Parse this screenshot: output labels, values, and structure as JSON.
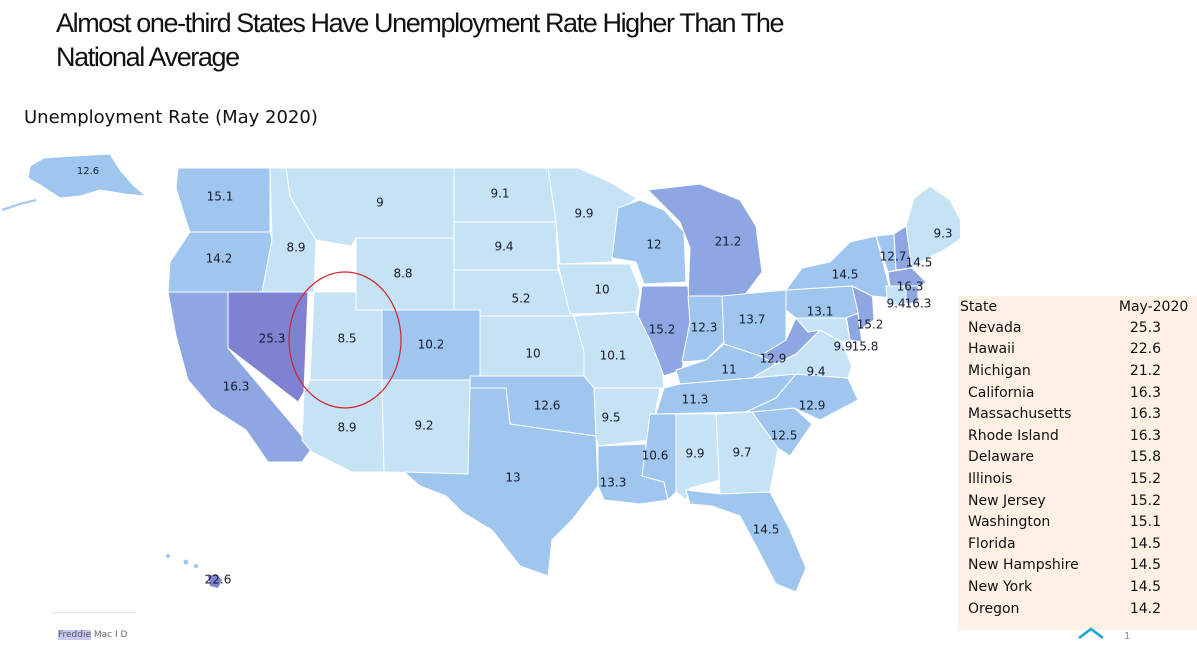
{
  "title": "Almost one-third States Have Unemployment Rate Higher Than The National Average",
  "subtitle": "Unemployment Rate (May 2020)",
  "legend_colors": {
    "low": "#c6e2f5",
    "mid": "#9ec6ee",
    "high": "#8ea6e2",
    "highest": "#7f82d0",
    "highlight_circle": "#d6202a",
    "table_background": "#fdf1e6"
  },
  "map_labels": {
    "AK": "12.6",
    "WA": "15.1",
    "OR": "14.2",
    "CA": "16.3",
    "NV": "25.3",
    "ID": "8.9",
    "MT": "9",
    "WY": "8.8",
    "UT": "8.5",
    "AZ": "8.9",
    "CO": "10.2",
    "NM": "9.2",
    "ND": "9.1",
    "SD": "9.4",
    "NE": "5.2",
    "KS": "10",
    "OK": "12.6",
    "TX": "13",
    "MN": "9.9",
    "IA": "10",
    "MO": "10.1",
    "AR": "9.5",
    "LA": "13.3",
    "WI": "12",
    "MI": "21.2",
    "IL": "15.2",
    "IN": "12.3",
    "OH": "13.7",
    "KY": "11",
    "TN": "11.3",
    "MS": "10.6",
    "AL": "9.9",
    "GA": "9.7",
    "FL": "14.5",
    "SC": "12.5",
    "NC": "12.9",
    "VA": "9.4",
    "WV": "12.9",
    "PA": "13.1",
    "NY": "14.5",
    "NJ": "15.2",
    "DE": "15.8",
    "MD": "9.9",
    "ME": "9.3",
    "NH": "14.5",
    "VT": "12.7",
    "MA": "16.3",
    "CT": "9.4",
    "RI": "16.3",
    "HI": "22.6"
  },
  "table": {
    "headers": [
      "State",
      "May-2020"
    ],
    "rows": [
      {
        "state": "Nevada",
        "value": "25.3"
      },
      {
        "state": "Hawaii",
        "value": "22.6"
      },
      {
        "state": "Michigan",
        "value": "21.2"
      },
      {
        "state": "California",
        "value": "16.3"
      },
      {
        "state": "Massachusetts",
        "value": "16.3"
      },
      {
        "state": "Rhode Island",
        "value": "16.3"
      },
      {
        "state": "Delaware",
        "value": "15.8"
      },
      {
        "state": "Illinois",
        "value": "15.2"
      },
      {
        "state": "New Jersey",
        "value": "15.2"
      },
      {
        "state": "Washington",
        "value": "15.1"
      },
      {
        "state": "Florida",
        "value": "14.5"
      },
      {
        "state": "New Hampshire",
        "value": "14.5"
      },
      {
        "state": "New York",
        "value": "14.5"
      },
      {
        "state": "Oregon",
        "value": "14.2"
      }
    ]
  },
  "footer": {
    "brand": "Freddie",
    "rest": " Mac  I  D",
    "page": "1"
  }
}
